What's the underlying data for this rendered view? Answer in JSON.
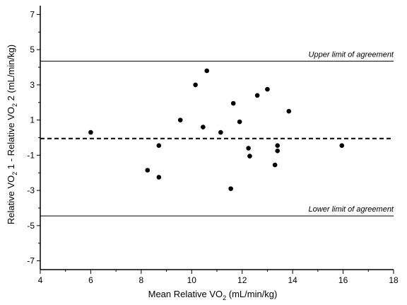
{
  "chart_data": {
    "type": "scatter",
    "xlabel": "Mean Relative VO",
    "xlabel_sub": "2",
    "xlabel_unit": " (mL/min/kg)",
    "ylabel_part1": "Relative  VO",
    "ylabel_sub1": "2",
    "ylabel_part2": " 1 - Relative VO",
    "ylabel_sub2": "2",
    "ylabel_part3": " 2 (mL/min/kg)",
    "xlim": [
      4,
      18
    ],
    "ylim": [
      -7.5,
      7.5
    ],
    "x_ticks": [
      4,
      6,
      8,
      10,
      12,
      14,
      16,
      18
    ],
    "y_ticks": [
      7,
      5,
      3,
      1,
      -1,
      -3,
      -5,
      -7
    ],
    "y_tick_labels": [
      "7",
      "5",
      "3",
      "1",
      "-1",
      "-3",
      "-5",
      "-7"
    ],
    "points": [
      {
        "x": 6.0,
        "y": 0.3
      },
      {
        "x": 8.25,
        "y": -1.85
      },
      {
        "x": 8.7,
        "y": -0.45
      },
      {
        "x": 8.7,
        "y": -2.25
      },
      {
        "x": 9.55,
        "y": 1.0
      },
      {
        "x": 10.15,
        "y": 3.0
      },
      {
        "x": 10.45,
        "y": 0.6
      },
      {
        "x": 10.6,
        "y": 3.8
      },
      {
        "x": 11.15,
        "y": 0.3
      },
      {
        "x": 11.55,
        "y": -2.9
      },
      {
        "x": 11.65,
        "y": 1.95
      },
      {
        "x": 11.9,
        "y": 0.9
      },
      {
        "x": 12.25,
        "y": -0.6
      },
      {
        "x": 12.3,
        "y": -1.05
      },
      {
        "x": 12.6,
        "y": 2.4
      },
      {
        "x": 13.0,
        "y": 2.75
      },
      {
        "x": 13.3,
        "y": -1.55
      },
      {
        "x": 13.4,
        "y": -0.75
      },
      {
        "x": 13.4,
        "y": -0.45
      },
      {
        "x": 13.85,
        "y": 1.5
      },
      {
        "x": 15.95,
        "y": -0.45
      }
    ],
    "mean_difference": -0.05,
    "upper_limit": 4.35,
    "lower_limit": -4.45,
    "upper_label": "Upper limit of agreement",
    "lower_label": "Lower limit of agreement"
  }
}
